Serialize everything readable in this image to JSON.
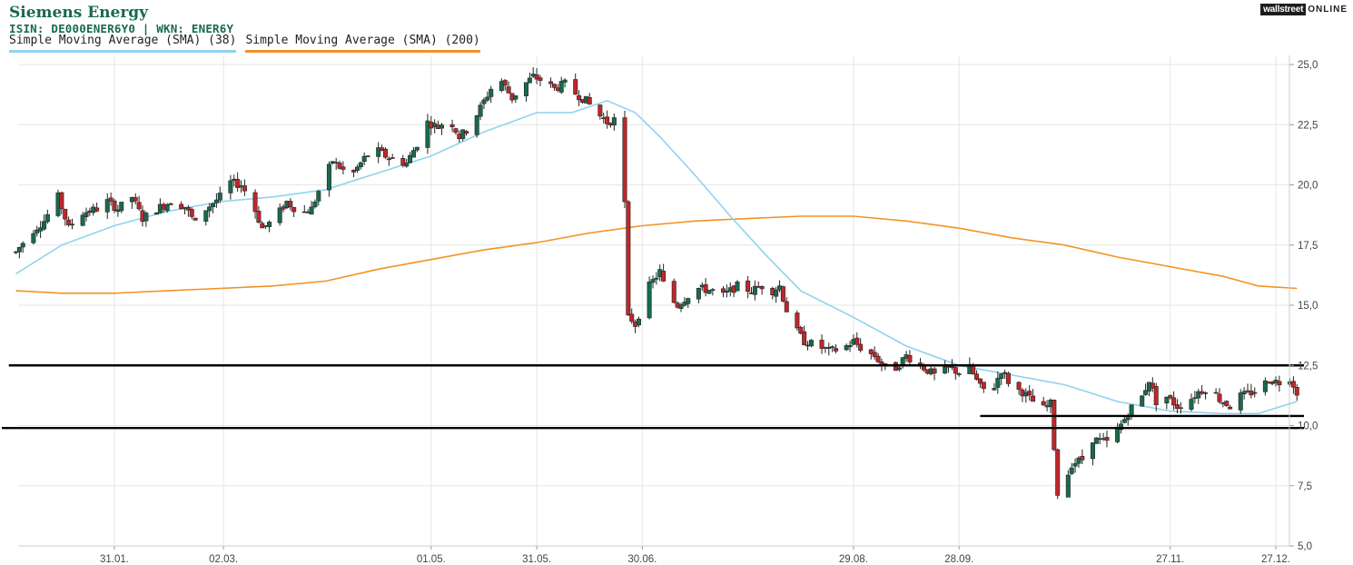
{
  "header": {
    "title": "Siemens Energy",
    "isin_line": "ISIN: DE000ENER6Y0  | WKN: ENER6Y"
  },
  "brand": {
    "box": "wallstreet",
    "text": "ONLINE"
  },
  "legend": [
    {
      "label": "Simple Moving Average (SMA) (38)",
      "color": "#8fd3ee"
    },
    {
      "label": "Simple Moving Average (SMA) (200)",
      "color": "#f59226"
    }
  ],
  "chart_data": {
    "type": "candlestick",
    "title": "Siemens Energy",
    "ylim": [
      5.0,
      25.0
    ],
    "y_ticks": [
      "25,0",
      "22,5",
      "20,0",
      "17,5",
      "15,0",
      "12,5",
      "10,0",
      "7,5",
      "5,0"
    ],
    "y_tick_values": [
      25,
      22.5,
      20,
      17.5,
      15,
      12.5,
      10,
      7.5,
      5
    ],
    "x_ticks": [
      "31.01.",
      "02.03.",
      "01.05.",
      "31.05.",
      "30.06.",
      "29.08.",
      "28.09.",
      "27.11.",
      "27.12."
    ],
    "x_tick_days": [
      30,
      61,
      120,
      150,
      180,
      240,
      270,
      330,
      360
    ],
    "x_range_days": [
      2,
      366
    ],
    "grid": true,
    "colors": {
      "up": "#176b4d",
      "down": "#c0262b",
      "sma38": "#8fd3ee",
      "sma200": "#f59226",
      "hline": "#000000"
    },
    "horizontal_lines": [
      {
        "name": "resistance-line",
        "value": 12.5,
        "from_day": 0,
        "to_day": 368
      },
      {
        "name": "support-line-upper",
        "value": 10.4,
        "from_day": 276,
        "to_day": 368
      },
      {
        "name": "support-line-lower",
        "value": 9.9,
        "from_day": -2,
        "to_day": 368
      }
    ],
    "price_path": [
      [
        2,
        17.2
      ],
      [
        6,
        18.0
      ],
      [
        10,
        18.5
      ],
      [
        14,
        19.5
      ],
      [
        17,
        18.2
      ],
      [
        20,
        18.8
      ],
      [
        25,
        19.0
      ],
      [
        28,
        19.3
      ],
      [
        31,
        19.0
      ],
      [
        35,
        19.5
      ],
      [
        38,
        18.6
      ],
      [
        42,
        19.0
      ],
      [
        46,
        19.3
      ],
      [
        50,
        19.1
      ],
      [
        53,
        18.4
      ],
      [
        56,
        19.0
      ],
      [
        60,
        19.5
      ],
      [
        63,
        20.1
      ],
      [
        66,
        20.0
      ],
      [
        69,
        19.3
      ],
      [
        72,
        18.2
      ],
      [
        75,
        18.5
      ],
      [
        79,
        19.3
      ],
      [
        83,
        18.8
      ],
      [
        86,
        19.0
      ],
      [
        89,
        20.1
      ],
      [
        92,
        21.0
      ],
      [
        95,
        20.6
      ],
      [
        98,
        20.5
      ],
      [
        101,
        21.1
      ],
      [
        104,
        21.5
      ],
      [
        107,
        21.2
      ],
      [
        110,
        21.0
      ],
      [
        113,
        20.9
      ],
      [
        116,
        21.7
      ],
      [
        119,
        22.6
      ],
      [
        122,
        22.4
      ],
      [
        125,
        22.8
      ],
      [
        128,
        22.0
      ],
      [
        131,
        22.4
      ],
      [
        134,
        23.2
      ],
      [
        137,
        24.0
      ],
      [
        140,
        24.3
      ],
      [
        143,
        23.6
      ],
      [
        146,
        24.1
      ],
      [
        149,
        24.5
      ],
      [
        152,
        24.3
      ],
      [
        155,
        24.0
      ],
      [
        158,
        24.2
      ],
      [
        161,
        23.8
      ],
      [
        164,
        23.5
      ],
      [
        167,
        23.0
      ],
      [
        170,
        22.6
      ],
      [
        172,
        22.7
      ],
      [
        173,
        19.8
      ],
      [
        175,
        19.3
      ],
      [
        176,
        14.6
      ],
      [
        178,
        14.2
      ],
      [
        180,
        15.0
      ],
      [
        182,
        15.8
      ],
      [
        185,
        16.4
      ],
      [
        187,
        15.4
      ],
      [
        190,
        15.0
      ],
      [
        193,
        15.4
      ],
      [
        196,
        15.7
      ],
      [
        200,
        15.6
      ],
      [
        203,
        15.4
      ],
      [
        207,
        15.8
      ],
      [
        211,
        15.6
      ],
      [
        214,
        15.8
      ],
      [
        217,
        15.6
      ],
      [
        219,
        15.8
      ],
      [
        221,
        14.8
      ],
      [
        223,
        14.1
      ],
      [
        226,
        13.5
      ],
      [
        230,
        13.3
      ],
      [
        233,
        13.1
      ],
      [
        237,
        13.2
      ],
      [
        240,
        13.5
      ],
      [
        243,
        13.1
      ],
      [
        246,
        12.9
      ],
      [
        249,
        12.4
      ],
      [
        252,
        12.4
      ],
      [
        255,
        12.9
      ],
      [
        258,
        12.6
      ],
      [
        261,
        12.3
      ],
      [
        264,
        12.0
      ],
      [
        267,
        12.4
      ],
      [
        270,
        12.2
      ],
      [
        273,
        12.4
      ],
      [
        276,
        11.6
      ],
      [
        279,
        11.3
      ],
      [
        282,
        12.3
      ],
      [
        285,
        11.6
      ],
      [
        288,
        11.4
      ],
      [
        291,
        11.0
      ],
      [
        294,
        10.7
      ],
      [
        296,
        10.9
      ],
      [
        298,
        7.1
      ],
      [
        300,
        7.6
      ],
      [
        302,
        8.4
      ],
      [
        305,
        8.6
      ],
      [
        307,
        9.5
      ],
      [
        309,
        9.4
      ],
      [
        312,
        9.3
      ],
      [
        315,
        9.8
      ],
      [
        318,
        10.5
      ],
      [
        320,
        11.0
      ],
      [
        322,
        11.2
      ],
      [
        324,
        11.9
      ],
      [
        326,
        11.0
      ],
      [
        329,
        11.2
      ],
      [
        332,
        10.8
      ],
      [
        335,
        11.0
      ],
      [
        338,
        11.4
      ],
      [
        341,
        11.6
      ],
      [
        344,
        11.1
      ],
      [
        347,
        10.8
      ],
      [
        349,
        11.2
      ],
      [
        352,
        11.3
      ],
      [
        355,
        11.5
      ],
      [
        358,
        11.9
      ],
      [
        361,
        11.8
      ],
      [
        364,
        12.0
      ],
      [
        366,
        11.4
      ]
    ],
    "series": [
      {
        "name": "Simple Moving Average (SMA) (38)",
        "x": [
          2,
          15,
          30,
          45,
          60,
          75,
          90,
          105,
          120,
          135,
          150,
          160,
          170,
          178,
          185,
          195,
          205,
          215,
          225,
          240,
          255,
          270,
          285,
          300,
          315,
          330,
          345,
          355,
          366
        ],
        "y": [
          16.3,
          17.5,
          18.3,
          18.9,
          19.3,
          19.5,
          19.8,
          20.5,
          21.2,
          22.2,
          23.0,
          23.0,
          23.5,
          23.0,
          22.0,
          20.4,
          18.7,
          17.1,
          15.6,
          14.5,
          13.3,
          12.5,
          12.1,
          11.7,
          11.0,
          10.6,
          10.5,
          10.5,
          11.0
        ]
      },
      {
        "name": "Simple Moving Average (SMA) (200)",
        "x": [
          2,
          15,
          30,
          45,
          60,
          75,
          90,
          105,
          120,
          135,
          150,
          165,
          180,
          195,
          210,
          225,
          240,
          255,
          270,
          285,
          300,
          315,
          330,
          345,
          355,
          366
        ],
        "y": [
          15.6,
          15.5,
          15.5,
          15.6,
          15.7,
          15.8,
          16.0,
          16.5,
          16.9,
          17.3,
          17.6,
          18.0,
          18.3,
          18.5,
          18.6,
          18.7,
          18.7,
          18.5,
          18.2,
          17.8,
          17.5,
          17.0,
          16.6,
          16.2,
          15.8,
          15.7
        ]
      }
    ]
  }
}
